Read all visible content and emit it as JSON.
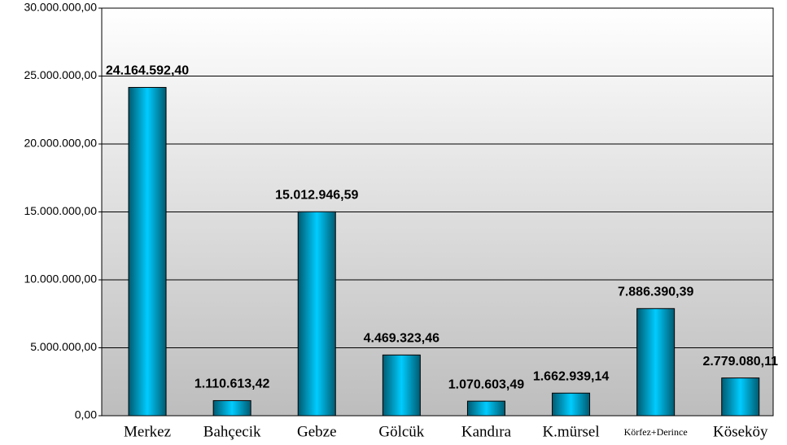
{
  "chart_data": {
    "type": "bar",
    "categories": [
      "Merkez",
      "Bahçecik",
      "Gebze",
      "Gölcük",
      "Kandıra",
      "K.mürsel",
      "Körfez+Derince",
      "Köseköy"
    ],
    "values": [
      24164592.4,
      1110613.42,
      15012946.59,
      4469323.46,
      1070603.49,
      1662939.14,
      7886390.39,
      2779080.11
    ],
    "value_labels": [
      "24.164.592,40",
      "1.110.613,42",
      "15.012.946,59",
      "4.469.323,46",
      "1.070.603,49",
      "1.662.939,14",
      "7.886.390,39",
      "2.779.080,11"
    ],
    "ylim": [
      0,
      30000000
    ],
    "yticks": [
      {
        "value": 0,
        "label": "0,00"
      },
      {
        "value": 5000000,
        "label": "5.000.000,00"
      },
      {
        "value": 10000000,
        "label": "10.000.000,00"
      },
      {
        "value": 15000000,
        "label": "15.000.000,00"
      },
      {
        "value": 20000000,
        "label": "20.000.000,00"
      },
      {
        "value": 25000000,
        "label": "25.000.000,00"
      },
      {
        "value": 30000000,
        "label": "30.000.000,00"
      }
    ],
    "grid": true
  }
}
